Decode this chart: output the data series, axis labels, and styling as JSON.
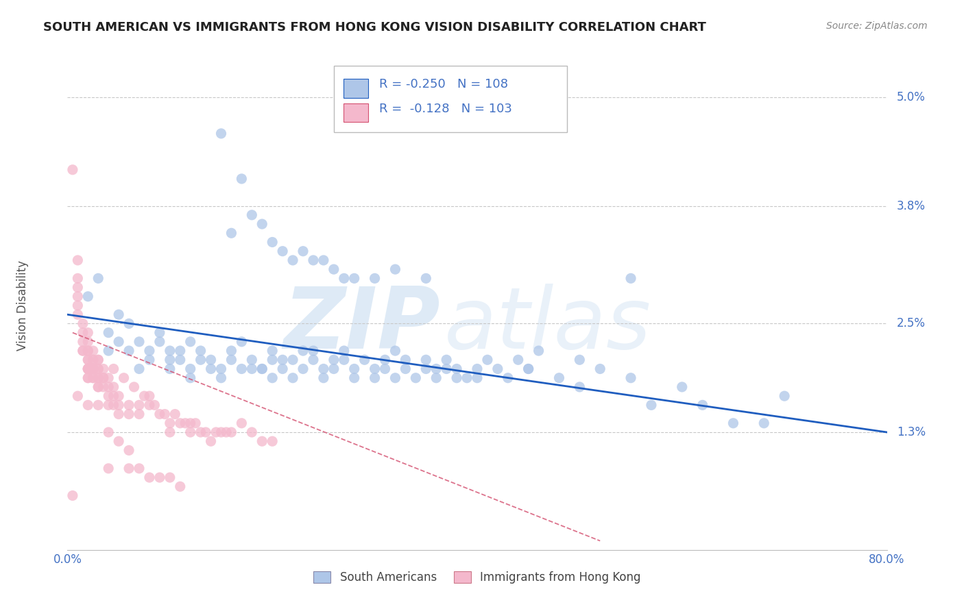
{
  "title": "SOUTH AMERICAN VS IMMIGRANTS FROM HONG KONG VISION DISABILITY CORRELATION CHART",
  "source": "Source: ZipAtlas.com",
  "ylabel": "Vision Disability",
  "xlim": [
    0.0,
    0.8
  ],
  "ylim": [
    0.0,
    0.054
  ],
  "ytick_vals": [
    0.013,
    0.025,
    0.038,
    0.05
  ],
  "ytick_labels": [
    "1.3%",
    "2.5%",
    "3.8%",
    "5.0%"
  ],
  "xticks": [
    0.0,
    0.1,
    0.2,
    0.3,
    0.4,
    0.5,
    0.6,
    0.7,
    0.8
  ],
  "xtick_labels": [
    "0.0%",
    "",
    "",
    "",
    "",
    "",
    "",
    "",
    "80.0%"
  ],
  "blue_label": "South Americans",
  "pink_label": "Immigrants from Hong Kong",
  "blue_R": "-0.250",
  "blue_N": "108",
  "pink_R": "-0.128",
  "pink_N": "103",
  "blue_color": "#aec6e8",
  "blue_line_color": "#1f5dbf",
  "pink_color": "#f4b8cc",
  "pink_line_color": "#d45070",
  "watermark_zip": "ZIP",
  "watermark_atlas": "atlas",
  "background_color": "#ffffff",
  "grid_color": "#c8c8c8",
  "axis_color": "#4472c4",
  "title_color": "#222222",
  "blue_line": [
    [
      0.0,
      0.8
    ],
    [
      0.026,
      0.013
    ]
  ],
  "pink_line": [
    [
      0.005,
      0.52
    ],
    [
      0.024,
      0.001
    ]
  ],
  "blue_scatter": [
    [
      0.02,
      0.028
    ],
    [
      0.03,
      0.03
    ],
    [
      0.04,
      0.024
    ],
    [
      0.05,
      0.026
    ],
    [
      0.06,
      0.022
    ],
    [
      0.06,
      0.025
    ],
    [
      0.07,
      0.023
    ],
    [
      0.08,
      0.022
    ],
    [
      0.09,
      0.024
    ],
    [
      0.1,
      0.022
    ],
    [
      0.1,
      0.021
    ],
    [
      0.11,
      0.022
    ],
    [
      0.12,
      0.023
    ],
    [
      0.13,
      0.022
    ],
    [
      0.14,
      0.021
    ],
    [
      0.15,
      0.02
    ],
    [
      0.16,
      0.022
    ],
    [
      0.17,
      0.023
    ],
    [
      0.18,
      0.021
    ],
    [
      0.19,
      0.02
    ],
    [
      0.2,
      0.022
    ],
    [
      0.2,
      0.019
    ],
    [
      0.21,
      0.021
    ],
    [
      0.22,
      0.021
    ],
    [
      0.23,
      0.022
    ],
    [
      0.24,
      0.022
    ],
    [
      0.25,
      0.02
    ],
    [
      0.26,
      0.021
    ],
    [
      0.27,
      0.022
    ],
    [
      0.28,
      0.02
    ],
    [
      0.29,
      0.021
    ],
    [
      0.3,
      0.02
    ],
    [
      0.31,
      0.021
    ],
    [
      0.32,
      0.022
    ],
    [
      0.33,
      0.021
    ],
    [
      0.34,
      0.019
    ],
    [
      0.35,
      0.021
    ],
    [
      0.36,
      0.02
    ],
    [
      0.37,
      0.021
    ],
    [
      0.38,
      0.02
    ],
    [
      0.39,
      0.019
    ],
    [
      0.4,
      0.02
    ],
    [
      0.41,
      0.021
    ],
    [
      0.42,
      0.02
    ],
    [
      0.43,
      0.019
    ],
    [
      0.44,
      0.021
    ],
    [
      0.45,
      0.02
    ],
    [
      0.46,
      0.022
    ],
    [
      0.48,
      0.019
    ],
    [
      0.5,
      0.021
    ],
    [
      0.52,
      0.02
    ],
    [
      0.55,
      0.019
    ],
    [
      0.04,
      0.022
    ],
    [
      0.05,
      0.023
    ],
    [
      0.07,
      0.02
    ],
    [
      0.08,
      0.021
    ],
    [
      0.09,
      0.023
    ],
    [
      0.1,
      0.02
    ],
    [
      0.11,
      0.021
    ],
    [
      0.12,
      0.02
    ],
    [
      0.12,
      0.019
    ],
    [
      0.13,
      0.021
    ],
    [
      0.14,
      0.02
    ],
    [
      0.15,
      0.019
    ],
    [
      0.16,
      0.021
    ],
    [
      0.17,
      0.02
    ],
    [
      0.18,
      0.02
    ],
    [
      0.19,
      0.02
    ],
    [
      0.2,
      0.021
    ],
    [
      0.21,
      0.02
    ],
    [
      0.22,
      0.019
    ],
    [
      0.23,
      0.02
    ],
    [
      0.24,
      0.021
    ],
    [
      0.25,
      0.019
    ],
    [
      0.26,
      0.02
    ],
    [
      0.27,
      0.021
    ],
    [
      0.28,
      0.019
    ],
    [
      0.3,
      0.019
    ],
    [
      0.31,
      0.02
    ],
    [
      0.32,
      0.019
    ],
    [
      0.33,
      0.02
    ],
    [
      0.35,
      0.02
    ],
    [
      0.36,
      0.019
    ],
    [
      0.37,
      0.02
    ],
    [
      0.38,
      0.019
    ],
    [
      0.4,
      0.019
    ],
    [
      0.45,
      0.02
    ],
    [
      0.5,
      0.018
    ],
    [
      0.57,
      0.016
    ],
    [
      0.6,
      0.018
    ],
    [
      0.62,
      0.016
    ],
    [
      0.65,
      0.014
    ],
    [
      0.68,
      0.014
    ],
    [
      0.7,
      0.017
    ],
    [
      0.2,
      0.034
    ],
    [
      0.21,
      0.033
    ],
    [
      0.22,
      0.032
    ],
    [
      0.23,
      0.033
    ],
    [
      0.24,
      0.032
    ],
    [
      0.25,
      0.032
    ],
    [
      0.26,
      0.031
    ],
    [
      0.27,
      0.03
    ],
    [
      0.28,
      0.03
    ],
    [
      0.3,
      0.03
    ],
    [
      0.32,
      0.031
    ],
    [
      0.35,
      0.03
    ],
    [
      0.16,
      0.035
    ],
    [
      0.18,
      0.037
    ],
    [
      0.19,
      0.036
    ],
    [
      0.55,
      0.03
    ],
    [
      0.15,
      0.046
    ],
    [
      0.17,
      0.041
    ]
  ],
  "pink_scatter": [
    [
      0.005,
      0.042
    ],
    [
      0.01,
      0.032
    ],
    [
      0.01,
      0.03
    ],
    [
      0.01,
      0.029
    ],
    [
      0.01,
      0.028
    ],
    [
      0.01,
      0.027
    ],
    [
      0.01,
      0.026
    ],
    [
      0.015,
      0.025
    ],
    [
      0.015,
      0.024
    ],
    [
      0.015,
      0.023
    ],
    [
      0.015,
      0.022
    ],
    [
      0.02,
      0.024
    ],
    [
      0.02,
      0.023
    ],
    [
      0.02,
      0.022
    ],
    [
      0.02,
      0.022
    ],
    [
      0.02,
      0.021
    ],
    [
      0.02,
      0.021
    ],
    [
      0.02,
      0.02
    ],
    [
      0.02,
      0.02
    ],
    [
      0.02,
      0.02
    ],
    [
      0.02,
      0.02
    ],
    [
      0.02,
      0.019
    ],
    [
      0.02,
      0.019
    ],
    [
      0.025,
      0.022
    ],
    [
      0.025,
      0.021
    ],
    [
      0.025,
      0.021
    ],
    [
      0.025,
      0.02
    ],
    [
      0.025,
      0.02
    ],
    [
      0.025,
      0.02
    ],
    [
      0.025,
      0.019
    ],
    [
      0.025,
      0.019
    ],
    [
      0.03,
      0.021
    ],
    [
      0.03,
      0.021
    ],
    [
      0.03,
      0.02
    ],
    [
      0.03,
      0.02
    ],
    [
      0.03,
      0.019
    ],
    [
      0.03,
      0.019
    ],
    [
      0.03,
      0.018
    ],
    [
      0.03,
      0.018
    ],
    [
      0.035,
      0.02
    ],
    [
      0.035,
      0.019
    ],
    [
      0.035,
      0.018
    ],
    [
      0.04,
      0.019
    ],
    [
      0.04,
      0.018
    ],
    [
      0.04,
      0.017
    ],
    [
      0.04,
      0.016
    ],
    [
      0.045,
      0.018
    ],
    [
      0.045,
      0.017
    ],
    [
      0.045,
      0.016
    ],
    [
      0.05,
      0.017
    ],
    [
      0.05,
      0.016
    ],
    [
      0.05,
      0.015
    ],
    [
      0.06,
      0.016
    ],
    [
      0.06,
      0.015
    ],
    [
      0.07,
      0.016
    ],
    [
      0.07,
      0.015
    ],
    [
      0.08,
      0.017
    ],
    [
      0.08,
      0.016
    ],
    [
      0.09,
      0.015
    ],
    [
      0.1,
      0.014
    ],
    [
      0.1,
      0.013
    ],
    [
      0.11,
      0.014
    ],
    [
      0.12,
      0.014
    ],
    [
      0.12,
      0.013
    ],
    [
      0.13,
      0.013
    ],
    [
      0.14,
      0.012
    ],
    [
      0.15,
      0.013
    ],
    [
      0.16,
      0.013
    ],
    [
      0.17,
      0.014
    ],
    [
      0.18,
      0.013
    ],
    [
      0.19,
      0.012
    ],
    [
      0.2,
      0.012
    ],
    [
      0.01,
      0.017
    ],
    [
      0.02,
      0.016
    ],
    [
      0.03,
      0.016
    ],
    [
      0.04,
      0.013
    ],
    [
      0.05,
      0.012
    ],
    [
      0.06,
      0.011
    ],
    [
      0.005,
      0.006
    ],
    [
      0.04,
      0.009
    ],
    [
      0.06,
      0.009
    ],
    [
      0.07,
      0.009
    ],
    [
      0.08,
      0.008
    ],
    [
      0.09,
      0.008
    ],
    [
      0.1,
      0.008
    ],
    [
      0.11,
      0.007
    ],
    [
      0.015,
      0.022
    ],
    [
      0.025,
      0.02
    ],
    [
      0.035,
      0.019
    ],
    [
      0.045,
      0.02
    ],
    [
      0.055,
      0.019
    ],
    [
      0.065,
      0.018
    ],
    [
      0.075,
      0.017
    ],
    [
      0.085,
      0.016
    ],
    [
      0.095,
      0.015
    ],
    [
      0.105,
      0.015
    ],
    [
      0.115,
      0.014
    ],
    [
      0.125,
      0.014
    ],
    [
      0.135,
      0.013
    ],
    [
      0.145,
      0.013
    ],
    [
      0.155,
      0.013
    ]
  ]
}
